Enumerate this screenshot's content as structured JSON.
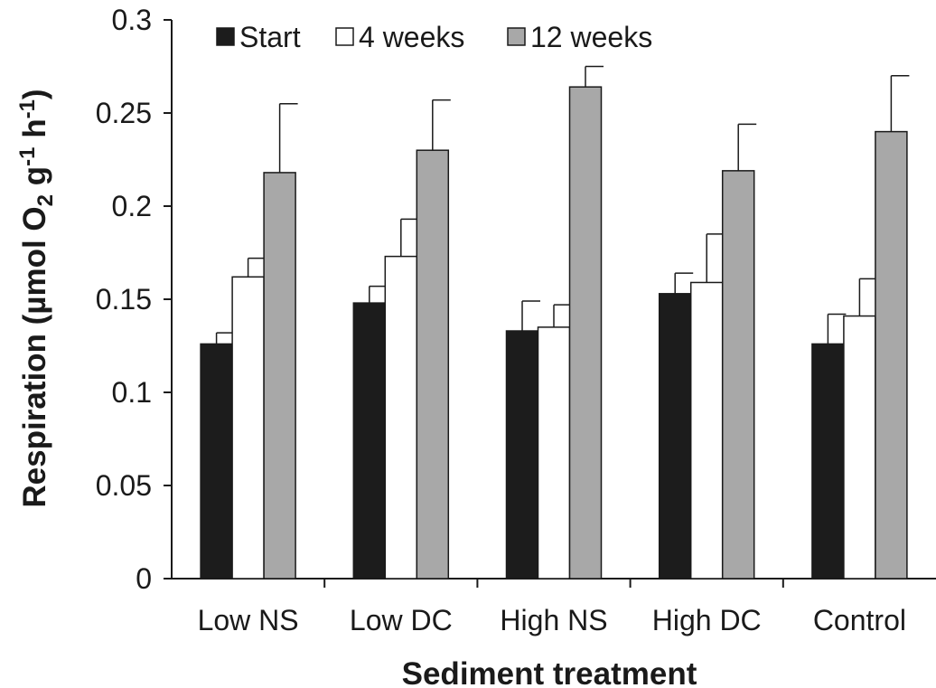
{
  "chart_data": {
    "type": "bar",
    "xlabel": "Sediment treatment",
    "ylabel_main": "Respiration (µmol O",
    "ylabel_sub": "2",
    "ylabel_mid": " g",
    "ylabel_sup1": "-1",
    "ylabel_h": " h",
    "ylabel_sup2": "-1",
    "ylabel_end": ")",
    "ylim": [
      0,
      0.3
    ],
    "yticks": [
      {
        "value": 0,
        "label": "0"
      },
      {
        "value": 0.05,
        "label": "0.05"
      },
      {
        "value": 0.1,
        "label": "0.1"
      },
      {
        "value": 0.15,
        "label": "0.15"
      },
      {
        "value": 0.2,
        "label": "0.2"
      },
      {
        "value": 0.25,
        "label": "0.25"
      },
      {
        "value": 0.3,
        "label": "0.3"
      }
    ],
    "categories": [
      "Low NS",
      "Low DC",
      "High NS",
      "High DC",
      "Control"
    ],
    "series": [
      {
        "name": "Start",
        "color": "#1c1c1c",
        "values": [
          0.126,
          0.148,
          0.133,
          0.153,
          0.126
        ],
        "errors": [
          0.006,
          0.009,
          0.016,
          0.011,
          0.016
        ]
      },
      {
        "name": "4 weeks",
        "color": "#ffffff",
        "values": [
          0.162,
          0.173,
          0.135,
          0.159,
          0.141
        ],
        "errors": [
          0.01,
          0.02,
          0.012,
          0.026,
          0.02
        ]
      },
      {
        "name": "12 weeks",
        "color": "#a8a8a8",
        "values": [
          0.218,
          0.23,
          0.264,
          0.219,
          0.24
        ],
        "errors": [
          0.037,
          0.027,
          0.011,
          0.025,
          0.03
        ]
      }
    ],
    "legend_position": "top-left",
    "grid": false
  }
}
